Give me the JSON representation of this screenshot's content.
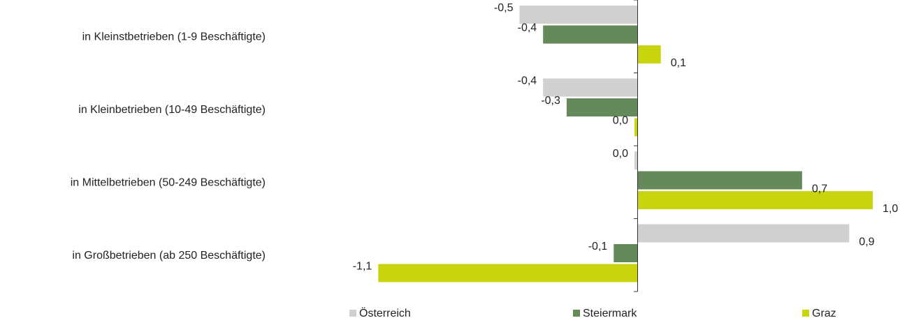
{
  "chart_data": {
    "type": "bar",
    "orientation": "horizontal",
    "categories": [
      "in Kleinstbetrieben (1-9 Beschäftigte)",
      "in Kleinbetrieben (10-49 Beschäftigte)",
      "in Mittelbetrieben (50-249 Beschäftigte)",
      "in Großbetrieben (ab 250 Beschäftigte)"
    ],
    "series": [
      {
        "name": "Österreich",
        "color": "#d0d0d0",
        "values": [
          -0.5,
          -0.4,
          0.0,
          0.9
        ],
        "labels": [
          "-0,5",
          "-0,4",
          "0,0",
          "0,9"
        ]
      },
      {
        "name": "Steiermark",
        "color": "#66895a",
        "values": [
          -0.4,
          -0.3,
          0.7,
          -0.1
        ],
        "labels": [
          "-0,4",
          "-0,3",
          "0,7",
          "-0,1"
        ]
      },
      {
        "name": "Graz",
        "color": "#c8d40e",
        "values": [
          0.1,
          0.0,
          1.0,
          -1.1
        ],
        "labels": [
          "0,1",
          "0,0",
          "1,0",
          "-1,1"
        ]
      }
    ],
    "xlim": [
      -1.2,
      1.0
    ],
    "grid": false,
    "legend_position": "bottom"
  }
}
